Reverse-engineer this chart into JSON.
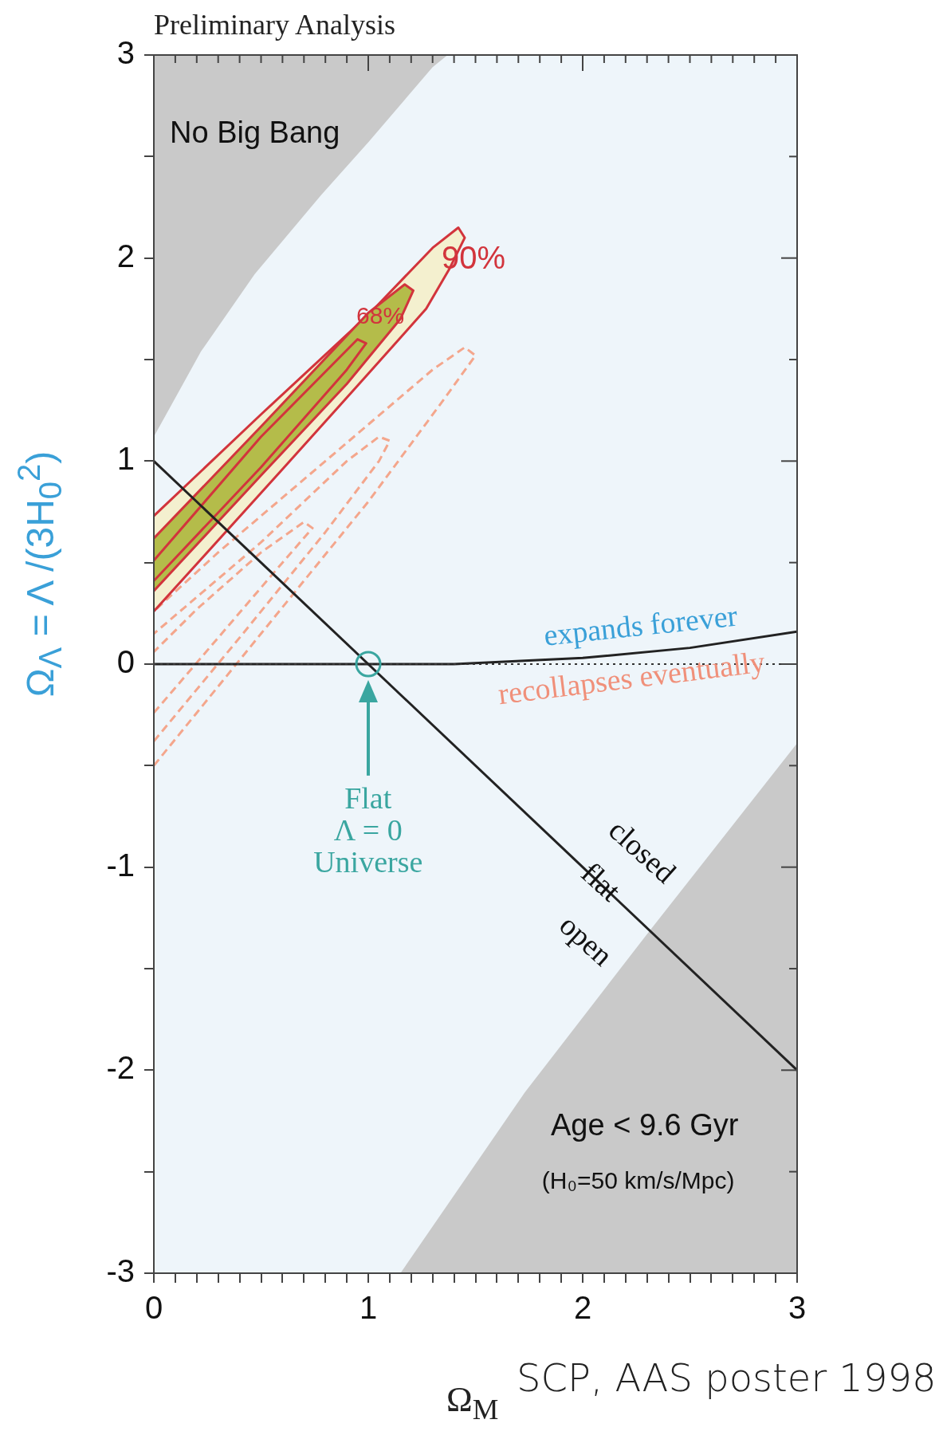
{
  "chart_data": {
    "type": "line",
    "title": "Preliminary Analysis",
    "xlabel": "Ω$_{M}$",
    "ylabel": "Ω$_{Λ}$ = Λ /(3H$_{0}$$^{2}$)",
    "xlim": [
      0,
      3
    ],
    "ylim": [
      -3,
      3
    ],
    "xticks": [
      0,
      {
        "value": 0.1,
        "label": null
      },
      {
        "value": 0.2,
        "label": null
      },
      {
        "value": 0.3,
        "label": null
      },
      {
        "value": 0.4,
        "label": null
      },
      {
        "value": 0.5,
        "label": null
      },
      {
        "value": 0.6,
        "label": null
      },
      {
        "value": 0.7,
        "label": null
      },
      {
        "value": 0.8,
        "label": null
      },
      {
        "value": 0.9,
        "label": null
      },
      1,
      {
        "value": 1.1,
        "label": null
      },
      {
        "value": 1.2,
        "label": null
      },
      {
        "value": 1.3,
        "label": null
      },
      {
        "value": 1.4,
        "label": null
      },
      {
        "value": 1.5,
        "label": null
      },
      {
        "value": 1.6,
        "label": null
      },
      {
        "value": 1.7,
        "label": null
      },
      {
        "value": 1.8,
        "label": null
      },
      {
        "value": 1.9,
        "label": null
      },
      2,
      {
        "value": 2.1,
        "label": null
      },
      {
        "value": 2.2,
        "label": null
      },
      {
        "value": 2.3,
        "label": null
      },
      {
        "value": 2.4,
        "label": null
      },
      {
        "value": 2.5,
        "label": null
      },
      {
        "value": 2.6,
        "label": null
      },
      {
        "value": 2.7,
        "label": null
      },
      {
        "value": 2.8,
        "label": null
      },
      {
        "value": 2.9,
        "label": null
      },
      3
    ],
    "yticks": [
      -3,
      {
        "value": -2.5,
        "label": null
      },
      -2,
      {
        "value": -1.5,
        "label": null
      },
      -1,
      {
        "value": -0.5,
        "label": null
      },
      0,
      {
        "value": 0.5,
        "label": null
      },
      1,
      {
        "value": 1.5,
        "label": null
      },
      2,
      {
        "value": 2.5,
        "label": null
      },
      3
    ],
    "marker": "none",
    "series": [
      {
        "type": "area",
        "color": "#c9c9c9",
        "x": [
          0,
          0.22,
          0.47,
          0.78,
          1.0,
          1.3,
          1.37,
          0
        ],
        "values": [
          1.12,
          1.54,
          1.92,
          2.31,
          2.57,
          2.94,
          3,
          3
        ]
      },
      {
        "type": "area",
        "color": "#c9c9c9",
        "x": [
          1.15,
          1.73,
          2.3,
          3,
          3
        ],
        "values": [
          -3,
          -2.11,
          -1.33,
          -0.39,
          -3
        ]
      },
      {
        "type": "line",
        "line_style": "dashed",
        "color": "#f4a68c",
        "x": [
          0,
          0.5,
          1.0,
          1.35,
          1.5,
          1.45,
          1.3,
          0.8,
          0.3,
          0
        ],
        "values": [
          -0.5,
          0.15,
          0.8,
          1.3,
          1.52,
          1.56,
          1.45,
          1.0,
          0.55,
          0.26
        ]
      },
      {
        "type": "line",
        "line_style": "dashed",
        "color": "#f4a68c",
        "x": [
          0,
          0.4,
          0.8,
          1.05,
          1.1,
          1.05,
          0.9,
          0.5,
          0
        ],
        "values": [
          -0.38,
          0.13,
          0.65,
          1.0,
          1.1,
          1.12,
          1.0,
          0.6,
          0.15
        ]
      },
      {
        "type": "line",
        "line_style": "dashed",
        "color": "#f4a68c",
        "x": [
          0,
          0.3,
          0.6,
          0.74,
          0.7,
          0.5,
          0.2,
          0
        ],
        "values": [
          -0.24,
          0.13,
          0.5,
          0.67,
          0.7,
          0.55,
          0.27,
          0.06
        ]
      },
      {
        "type": "area",
        "color": "#f4f0cf",
        "x": [
          0,
          0.6,
          1.0,
          1.27,
          1.38,
          1.45,
          1.42,
          1.3,
          1.0,
          0.5,
          0
        ],
        "values": [
          0.26,
          0.96,
          1.43,
          1.75,
          1.95,
          2.1,
          2.15,
          2.05,
          1.72,
          1.23,
          0.73
        ]
      },
      {
        "type": "area",
        "color": "#b4bc4a",
        "x": [
          0,
          0.5,
          0.9,
          1.15,
          1.21,
          1.17,
          1.0,
          0.5,
          0
        ],
        "values": [
          0.36,
          0.93,
          1.38,
          1.7,
          1.84,
          1.87,
          1.73,
          1.17,
          0.62
        ]
      },
      {
        "type": "line",
        "color": "#d2343c",
        "x": [
          0,
          0.5,
          0.9,
          0.99,
          0.95,
          0.5,
          0
        ],
        "values": [
          0.41,
          0.97,
          1.45,
          1.58,
          1.6,
          1.12,
          0.51
        ]
      },
      {
        "type": "line",
        "color": "#222222",
        "x": [
          0,
          3
        ],
        "values": [
          1,
          -2
        ]
      },
      {
        "type": "line",
        "color": "#222222",
        "x": [
          0,
          1.4,
          2.0,
          2.5,
          3
        ],
        "values": [
          0,
          0,
          0.03,
          0.08,
          0.16
        ]
      },
      {
        "type": "scatter",
        "marker": "circle",
        "color": "#3aa6a0",
        "x": [
          1
        ],
        "values": [
          0
        ]
      }
    ],
    "ref_lines": [
      {
        "axis": "y",
        "value": 0,
        "label": null,
        "color": "#333333",
        "line_style": "dotted"
      }
    ],
    "annotations": [
      "No Big Bang",
      "90%",
      "68%",
      "expands forever",
      "recollapses eventually",
      "Flat\nΛ = 0\nUniverse",
      "closed",
      "flat",
      "open",
      "Age < 9.6 Gyr",
      "(H₀=50 km/s/Mpc)",
      "SCP, AAS poster 1998"
    ]
  }
}
